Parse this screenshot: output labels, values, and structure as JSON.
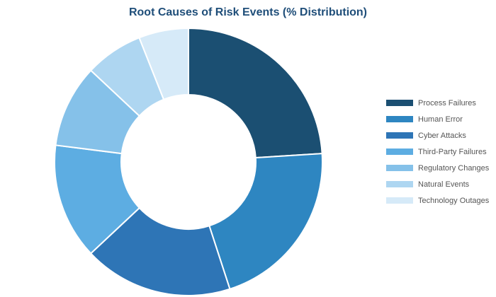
{
  "chart_data": {
    "type": "pie",
    "donut": true,
    "title": "Root Causes of Risk Events (% Distribution)",
    "categories": [
      "Process Failures",
      "Human Error",
      "Cyber Attacks",
      "Third-Party Failures",
      "Regulatory Changes",
      "Natural Events",
      "Technology Outages"
    ],
    "values": [
      24,
      21,
      18,
      14,
      10,
      7,
      6
    ],
    "colors": [
      "#1b4f72",
      "#2e86c1",
      "#2e75b6",
      "#5dade2",
      "#85c1e9",
      "#aed6f1",
      "#d6eaf8"
    ],
    "legend_position": "right",
    "start_angle": "top",
    "direction": "clockwise"
  }
}
